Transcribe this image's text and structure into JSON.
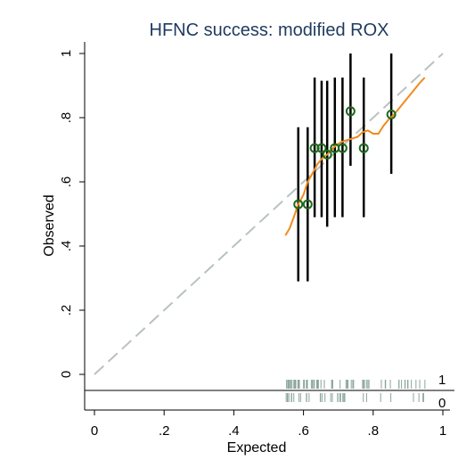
{
  "chart_data": {
    "type": "scatter",
    "title": "HFNC success: modified ROX",
    "xlabel": "Expected",
    "ylabel": "Observed",
    "xlim": [
      0,
      1
    ],
    "ylim": [
      0,
      1
    ],
    "x_ticks": [
      {
        "value": 0,
        "label": "0"
      },
      {
        "value": 0.2,
        "label": ".2"
      },
      {
        "value": 0.4,
        "label": ".4"
      },
      {
        "value": 0.6,
        "label": ".6"
      },
      {
        "value": 0.8,
        "label": ".8"
      },
      {
        "value": 1,
        "label": "1"
      }
    ],
    "y_ticks": [
      {
        "value": 0,
        "label": "0"
      },
      {
        "value": 0.2,
        "label": ".2"
      },
      {
        "value": 0.4,
        "label": ".4"
      },
      {
        "value": 0.6,
        "label": ".6"
      },
      {
        "value": 0.8,
        "label": ".8"
      },
      {
        "value": 1,
        "label": "1"
      }
    ],
    "grid": false,
    "reference_line": {
      "x": [
        0,
        1
      ],
      "y": [
        0,
        1
      ],
      "style": "dashed",
      "color": "#b8c2c0"
    },
    "points": [
      {
        "x": 0.585,
        "y": 0.53,
        "ci": [
          0.29,
          0.77
        ]
      },
      {
        "x": 0.612,
        "y": 0.53,
        "ci": [
          0.29,
          0.77
        ]
      },
      {
        "x": 0.632,
        "y": 0.705,
        "ci": [
          0.49,
          0.925
        ]
      },
      {
        "x": 0.652,
        "y": 0.705,
        "ci": [
          0.49,
          0.915
        ]
      },
      {
        "x": 0.668,
        "y": 0.685,
        "ci": [
          0.46,
          0.915
        ]
      },
      {
        "x": 0.69,
        "y": 0.705,
        "ci": [
          0.49,
          0.925
        ]
      },
      {
        "x": 0.712,
        "y": 0.705,
        "ci": [
          0.49,
          0.925
        ]
      },
      {
        "x": 0.735,
        "y": 0.82,
        "ci": [
          0.65,
          1.0
        ]
      },
      {
        "x": 0.773,
        "y": 0.705,
        "ci": [
          0.49,
          0.925
        ]
      },
      {
        "x": 0.852,
        "y": 0.81,
        "ci": [
          0.625,
          1.0
        ]
      }
    ],
    "smoother": {
      "color": "#f08a1c",
      "x": [
        0.548,
        0.56,
        0.572,
        0.585,
        0.6,
        0.612,
        0.625,
        0.64,
        0.655,
        0.668,
        0.68,
        0.695,
        0.71,
        0.725,
        0.74,
        0.755,
        0.77,
        0.785,
        0.8,
        0.815,
        0.83,
        0.845,
        0.86,
        0.875,
        0.89,
        0.905,
        0.92,
        0.935,
        0.948
      ],
      "y": [
        0.433,
        0.455,
        0.49,
        0.53,
        0.56,
        0.6,
        0.625,
        0.655,
        0.675,
        0.685,
        0.7,
        0.715,
        0.725,
        0.73,
        0.735,
        0.74,
        0.755,
        0.76,
        0.75,
        0.75,
        0.775,
        0.795,
        0.81,
        0.83,
        0.85,
        0.87,
        0.89,
        0.91,
        0.925
      ]
    },
    "marker_color": "#1b6b1b",
    "ci_color": "#000000",
    "rug": {
      "color": "#8aa59a",
      "labels": [
        "1",
        "0"
      ],
      "x_range": [
        0.55,
        0.95
      ]
    }
  }
}
